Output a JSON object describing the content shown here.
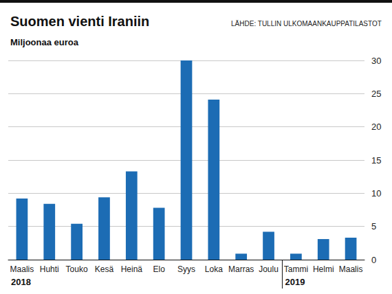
{
  "chart_data": {
    "type": "bar",
    "title": "Suomen vienti Iraniin",
    "subtitle": "Miljoonaa euroa",
    "source": "LÄHDE: TULLIN ULKOMAANKAUPPATILASTOT",
    "categories": [
      "Maalis",
      "Huhti",
      "Touko",
      "Kesä",
      "Heinä",
      "Elo",
      "Syys",
      "Loka",
      "Marras",
      "Joulu",
      "Tammi",
      "Helmi",
      "Maalis"
    ],
    "values": [
      9.2,
      8.4,
      5.4,
      9.4,
      13.3,
      7.8,
      30.0,
      24.1,
      0.9,
      4.2,
      0.9,
      3.1,
      3.3
    ],
    "color": "#1c6cb4",
    "ylim": [
      0,
      30
    ],
    "yticks": [
      0,
      5,
      10,
      15,
      20,
      25,
      30
    ],
    "grid": true,
    "annotations": [
      {
        "text": "2018",
        "at": 0
      },
      {
        "text": "2019",
        "at": 10
      }
    ]
  }
}
